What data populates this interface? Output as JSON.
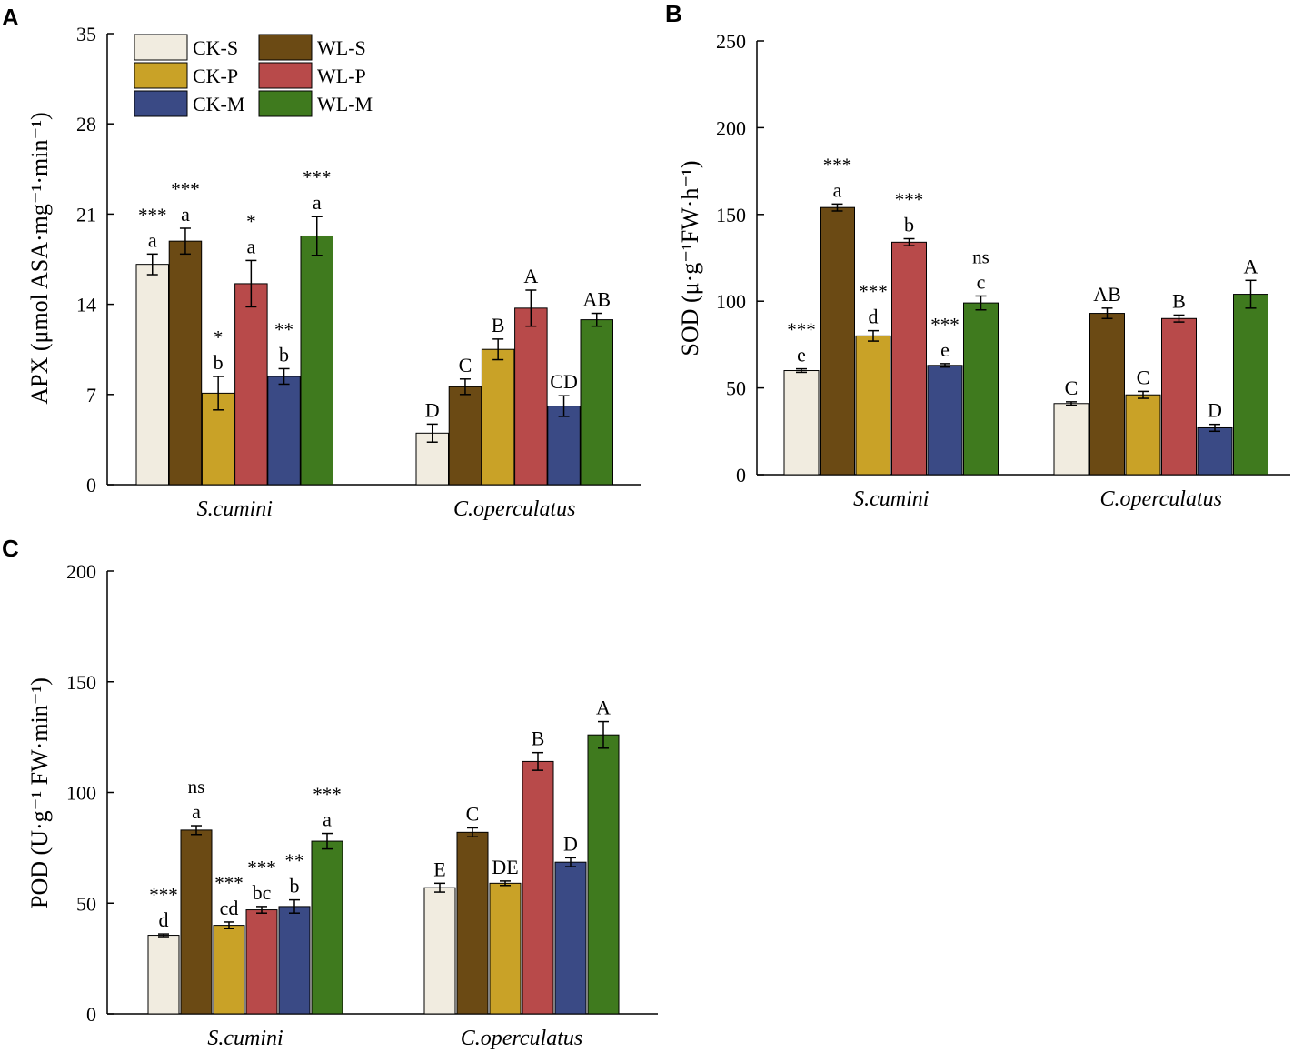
{
  "figure": {
    "legend": [
      {
        "name": "CK-S",
        "color": "#f1ece0"
      },
      {
        "name": "CK-P",
        "color": "#c9a227"
      },
      {
        "name": "CK-M",
        "color": "#3a4a85"
      },
      {
        "name": "WL-S",
        "color": "#6b4a14"
      },
      {
        "name": "WL-P",
        "color": "#b84a4a"
      },
      {
        "name": "WL-M",
        "color": "#3f7a1e"
      }
    ]
  },
  "chart_data": [
    {
      "panel": "A",
      "type": "bar",
      "ylabel": "APX (μmol ASA·mg⁻¹·min⁻¹)",
      "ylim": [
        0,
        35
      ],
      "yticks": [
        0,
        7,
        14,
        21,
        28,
        35
      ],
      "categories": [
        "S.cumini",
        "C.operculatus"
      ],
      "series": [
        {
          "name": "CK-S",
          "values": [
            17.1,
            4.0
          ],
          "errors": [
            0.8,
            0.7
          ],
          "letters": [
            "a",
            "D"
          ],
          "sig": "***"
        },
        {
          "name": "WL-S",
          "values": [
            18.9,
            7.6
          ],
          "errors": [
            1.0,
            0.6
          ],
          "letters": [
            "a",
            "C"
          ],
          "sig": "***"
        },
        {
          "name": "CK-P",
          "values": [
            7.1,
            10.5
          ],
          "errors": [
            1.3,
            0.8
          ],
          "letters": [
            "b",
            "B"
          ],
          "sig": "*"
        },
        {
          "name": "WL-P",
          "values": [
            15.6,
            13.7
          ],
          "errors": [
            1.8,
            1.4
          ],
          "letters": [
            "a",
            "A"
          ],
          "sig": "*"
        },
        {
          "name": "CK-M",
          "values": [
            8.4,
            6.1
          ],
          "errors": [
            0.6,
            0.8
          ],
          "letters": [
            "b",
            "CD"
          ],
          "sig": "**"
        },
        {
          "name": "WL-M",
          "values": [
            19.3,
            12.8
          ],
          "errors": [
            1.5,
            0.5
          ],
          "letters": [
            "a",
            "AB"
          ],
          "sig": "***"
        }
      ]
    },
    {
      "panel": "B",
      "type": "bar",
      "ylabel": "SOD (μ·g⁻¹FW·h⁻¹)",
      "ylim": [
        0,
        250
      ],
      "yticks": [
        0,
        50,
        100,
        150,
        200,
        250
      ],
      "categories": [
        "S.cumini",
        "C.operculatus"
      ],
      "series": [
        {
          "name": "CK-S",
          "values": [
            60,
            41
          ],
          "errors": [
            1,
            1
          ],
          "letters": [
            "e",
            "C"
          ],
          "sig": "***"
        },
        {
          "name": "WL-S",
          "values": [
            154,
            93
          ],
          "errors": [
            2,
            3
          ],
          "letters": [
            "a",
            "AB"
          ],
          "sig": "***"
        },
        {
          "name": "CK-P",
          "values": [
            80,
            46
          ],
          "errors": [
            3,
            2
          ],
          "letters": [
            "d",
            "C"
          ],
          "sig": "***"
        },
        {
          "name": "WL-P",
          "values": [
            134,
            90
          ],
          "errors": [
            2,
            2
          ],
          "letters": [
            "b",
            "B"
          ],
          "sig": "***"
        },
        {
          "name": "CK-M",
          "values": [
            63,
            27
          ],
          "errors": [
            1,
            2
          ],
          "letters": [
            "e",
            "D"
          ],
          "sig": "***"
        },
        {
          "name": "WL-M",
          "values": [
            99,
            104
          ],
          "errors": [
            4,
            8
          ],
          "letters": [
            "c",
            "A"
          ],
          "sig": "ns"
        }
      ]
    },
    {
      "panel": "C",
      "type": "bar",
      "ylabel": "POD (U·g⁻¹ FW·min⁻¹)",
      "ylim": [
        0,
        200
      ],
      "yticks": [
        0,
        50,
        100,
        150,
        200
      ],
      "categories": [
        "S.cumini",
        "C.operculatus"
      ],
      "series": [
        {
          "name": "CK-S",
          "values": [
            35.5,
            57
          ],
          "errors": [
            0.6,
            2
          ],
          "letters": [
            "d",
            "E"
          ],
          "sig": "***"
        },
        {
          "name": "WL-S",
          "values": [
            83,
            82
          ],
          "errors": [
            2,
            2
          ],
          "letters": [
            "a",
            "C"
          ],
          "sig": "ns"
        },
        {
          "name": "CK-P",
          "values": [
            40,
            59
          ],
          "errors": [
            1.5,
            1
          ],
          "letters": [
            "cd",
            "DE"
          ],
          "sig": "***"
        },
        {
          "name": "WL-P",
          "values": [
            47,
            114
          ],
          "errors": [
            1.5,
            4
          ],
          "letters": [
            "bc",
            "B"
          ],
          "sig": "***"
        },
        {
          "name": "CK-M",
          "values": [
            48.5,
            68.5
          ],
          "errors": [
            3,
            2
          ],
          "letters": [
            "b",
            "D"
          ],
          "sig": "**"
        },
        {
          "name": "WL-M",
          "values": [
            78,
            126
          ],
          "errors": [
            3.5,
            6
          ],
          "letters": [
            "a",
            "A"
          ],
          "sig": "***"
        }
      ]
    }
  ]
}
